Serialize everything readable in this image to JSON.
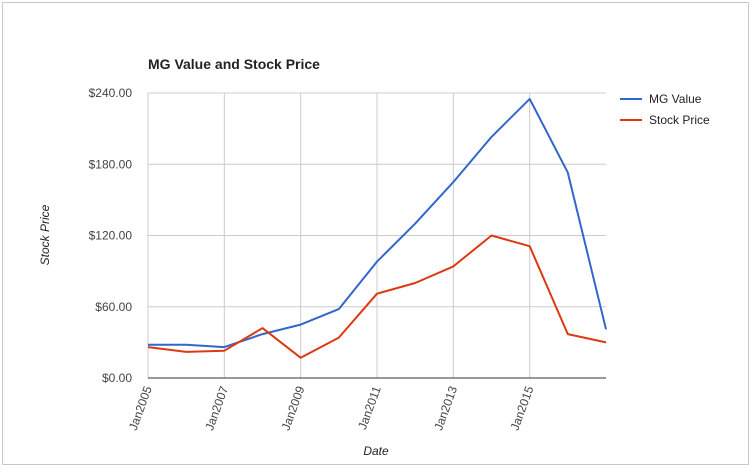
{
  "colors": {
    "mg_value": "#3366cc",
    "stock_price": "#dc3912",
    "grid": "#cccccc",
    "axis": "#333333",
    "background": "#ffffff"
  },
  "chart_data": {
    "type": "line",
    "title": "MG Value and Stock Price",
    "xlabel": "Date",
    "ylabel": "Stock Price",
    "ylim": [
      0,
      240
    ],
    "y_ticks": [
      0,
      60,
      120,
      180,
      240
    ],
    "y_tick_labels": [
      "$0.00",
      "$60.00",
      "$120.00",
      "$180.00",
      "$240.00"
    ],
    "x": [
      2005,
      2006,
      2007,
      2008,
      2009,
      2010,
      2011,
      2012,
      2013,
      2014,
      2015,
      2016,
      2017
    ],
    "xlim": [
      2005,
      2017
    ],
    "x_ticks": [
      2005,
      2007,
      2009,
      2011,
      2013,
      2015
    ],
    "x_tick_labels": [
      "Jan2005",
      "Jan2007",
      "Jan2009",
      "Jan2011",
      "Jan2013",
      "Jan2015"
    ],
    "grid": true,
    "legend_position": "top-right",
    "series": [
      {
        "name": "MG Value",
        "color": "#3366cc",
        "values": [
          28,
          28,
          26,
          37,
          45,
          58,
          98,
          130,
          165,
          203,
          235,
          173,
          41
        ]
      },
      {
        "name": "Stock Price",
        "color": "#dc3912",
        "values": [
          26,
          22,
          23,
          42,
          17,
          34,
          71,
          80,
          94,
          120,
          111,
          37,
          30
        ]
      }
    ]
  }
}
